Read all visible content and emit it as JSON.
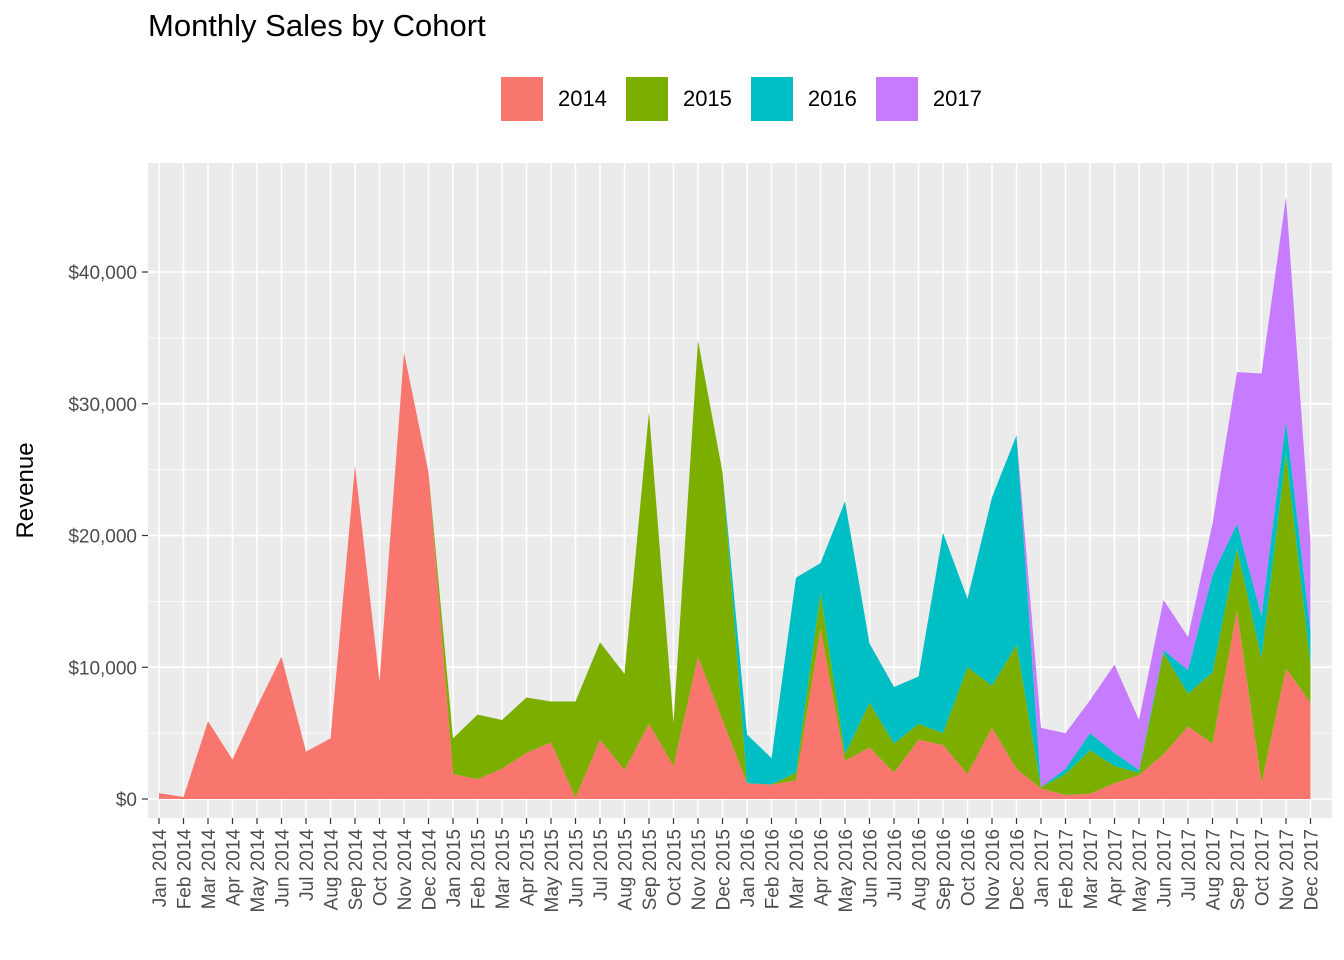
{
  "chart_data": {
    "type": "area",
    "stacked": true,
    "title": "Monthly Sales by Cohort",
    "xlabel": "",
    "ylabel": "Revenue",
    "ylim": [
      0,
      46000
    ],
    "grid": true,
    "legend_position": "top",
    "legend": [
      "2014",
      "2015",
      "2016",
      "2017"
    ],
    "y_ticks": [
      "$0",
      "$10,000",
      "$20,000",
      "$30,000",
      "$40,000"
    ],
    "y_tick_values": [
      0,
      10000,
      20000,
      30000,
      40000
    ],
    "x": [
      "Jan 2014",
      "Feb 2014",
      "Mar 2014",
      "Apr 2014",
      "May 2014",
      "Jun 2014",
      "Jul 2014",
      "Aug 2014",
      "Sep 2014",
      "Oct 2014",
      "Nov 2014",
      "Dec 2014",
      "Jan 2015",
      "Feb 2015",
      "Mar 2015",
      "Apr 2015",
      "May 2015",
      "Jun 2015",
      "Jul 2015",
      "Aug 2015",
      "Sep 2015",
      "Oct 2015",
      "Nov 2015",
      "Dec 2015",
      "Jan 2016",
      "Feb 2016",
      "Mar 2016",
      "Apr 2016",
      "May 2016",
      "Jun 2016",
      "Jul 2016",
      "Aug 2016",
      "Sep 2016",
      "Oct 2016",
      "Nov 2016",
      "Dec 2016",
      "Jan 2017",
      "Feb 2017",
      "Mar 2017",
      "Apr 2017",
      "May 2017",
      "Jun 2017",
      "Jul 2017",
      "Aug 2017",
      "Sep 2017",
      "Oct 2017",
      "Nov 2017",
      "Dec 2017"
    ],
    "colors": {
      "2014": "#f8766d",
      "2015": "#7cae00",
      "2016": "#00bfc4",
      "2017": "#c77cff"
    },
    "series": [
      {
        "name": "2014",
        "values": [
          450,
          150,
          5900,
          3000,
          7000,
          10800,
          3600,
          4600,
          25300,
          8900,
          33900,
          24800,
          1900,
          1500,
          2300,
          3500,
          4300,
          100,
          4500,
          2200,
          5700,
          2500,
          10800,
          6000,
          1200,
          1100,
          1400,
          12900,
          2900,
          3900,
          2000,
          4500,
          4100,
          1900,
          5400,
          2300,
          800,
          300,
          400,
          1200,
          1800,
          3400,
          5500,
          4200,
          14300,
          1200,
          9900,
          7300
        ]
      },
      {
        "name": "2015",
        "values": [
          0,
          0,
          0,
          0,
          0,
          0,
          0,
          0,
          0,
          0,
          0,
          0,
          2700,
          4900,
          3700,
          4200,
          3100,
          7300,
          7400,
          7300,
          23700,
          3300,
          24000,
          18800,
          0,
          0,
          600,
          2700,
          500,
          3400,
          2200,
          1200,
          900,
          8100,
          3200,
          9400,
          100,
          1600,
          3300,
          1300,
          200,
          7700,
          2500,
          5400,
          4700,
          9500,
          16300,
          2900
        ]
      },
      {
        "name": "2016",
        "values": [
          0,
          0,
          0,
          0,
          0,
          0,
          0,
          0,
          0,
          0,
          0,
          0,
          0,
          0,
          0,
          0,
          0,
          0,
          0,
          0,
          0,
          0,
          0,
          0,
          3700,
          2000,
          14800,
          2300,
          19200,
          4500,
          4300,
          3600,
          15200,
          5200,
          14300,
          15900,
          0,
          400,
          1300,
          1000,
          200,
          200,
          1800,
          7400,
          1900,
          3200,
          2500,
          2500
        ]
      },
      {
        "name": "2017",
        "values": [
          0,
          0,
          0,
          0,
          0,
          0,
          0,
          0,
          0,
          0,
          0,
          0,
          0,
          0,
          0,
          0,
          0,
          0,
          0,
          0,
          0,
          0,
          0,
          0,
          0,
          0,
          0,
          0,
          0,
          0,
          0,
          0,
          0,
          0,
          0,
          0,
          4500,
          2700,
          2500,
          6700,
          3800,
          3800,
          2500,
          3900,
          11500,
          18400,
          17000,
          6800
        ]
      }
    ]
  }
}
